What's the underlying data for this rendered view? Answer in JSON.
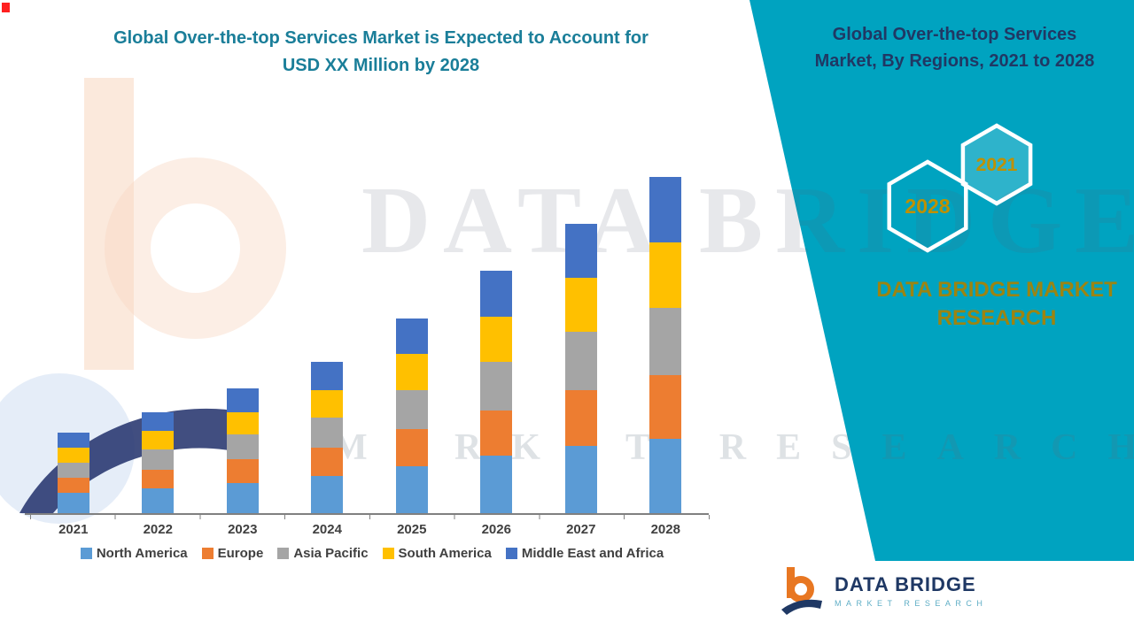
{
  "colors": {
    "panel_teal": "#00A3C0",
    "left_title_teal": "#1A7E99",
    "right_title_navy": "#203864",
    "hexagon_year_gold": "#BF9000",
    "brand_gold": "#9C8412",
    "axis_gray": "#808080",
    "label_gray": "#404040"
  },
  "left_panel": {
    "title_line1": "Global Over-the-top Services Market is Expected to Account for",
    "title_line2": "USD XX Million by 2028"
  },
  "right_panel": {
    "title_line1": "Global Over-the-top Services",
    "title_line2": "Market, By Regions, 2021 to 2028",
    "hexagons": [
      {
        "label": "2021"
      },
      {
        "label": "2028"
      }
    ],
    "brand": "DATA BRIDGE MARKET RESEARCH"
  },
  "watermark": {
    "line1": "DATA BRIDGE",
    "line2": "MARKET RESEARCH"
  },
  "footer_logo": {
    "name": "DATA BRIDGE",
    "tagline": "MARKET RESEARCH"
  },
  "chart_data": {
    "type": "bar",
    "stacked": true,
    "title": "Global Over-the-top Services Market, By Regions, 2021 to 2028",
    "categories": [
      "2021",
      "2022",
      "2023",
      "2024",
      "2025",
      "2026",
      "2027",
      "2028"
    ],
    "series": [
      {
        "name": "North America",
        "color": "#5B9BD5",
        "values": [
          6,
          7.5,
          9,
          11,
          14,
          17,
          20,
          22
        ]
      },
      {
        "name": "Europe",
        "color": "#ED7D31",
        "values": [
          4.5,
          5.5,
          7,
          8.5,
          11,
          13.5,
          16.5,
          19
        ]
      },
      {
        "name": "Asia Pacific",
        "color": "#A5A5A5",
        "values": [
          4.5,
          6,
          7.5,
          9,
          11.5,
          14.5,
          17.5,
          20
        ]
      },
      {
        "name": "South America",
        "color": "#FFC000",
        "values": [
          4.5,
          5.5,
          6.5,
          8,
          11,
          13.5,
          16,
          19.5
        ]
      },
      {
        "name": "Middle East and Africa",
        "color": "#4472C4",
        "values": [
          4.5,
          5.5,
          7,
          8.5,
          10.5,
          13.5,
          16,
          19.5
        ]
      }
    ],
    "xlabel": "",
    "ylabel": "",
    "ylim": [
      0,
      100
    ],
    "y_axis_visible": false,
    "grid": false,
    "legend_position": "bottom",
    "values_note": "Y-axis unlabeled in source (USD XX Million); values estimated in relative units with 2028 total = 100"
  }
}
